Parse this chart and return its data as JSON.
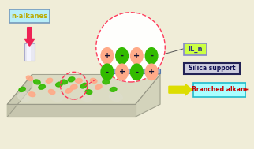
{
  "bg_color": "#f0edd8",
  "n_alkane_label": "n-alkanes",
  "n_alkane_box_facecolor": "#b8eef8",
  "n_alkane_box_edgecolor": "#7799bb",
  "n_alkane_text_color": "#bbaa00",
  "il_label": "IL_n",
  "il_box_facecolor": "#ccff44",
  "il_box_edgecolor": "#8888cc",
  "silica_label": "Silica support",
  "silica_box_facecolor": "#ccccdd",
  "silica_box_edgecolor": "#222255",
  "branched_label": "Branched alkane",
  "branched_box_facecolor": "#aaffff",
  "branched_box_edgecolor": "#22bbcc",
  "branched_text_color": "#cc0000",
  "arrow_down_color": "#ee2255",
  "arrow_right_color": "#dddd00",
  "circle_color": "#ff3355",
  "green_color": "#33bb00",
  "salmon_color": "#ffaa88",
  "silica_bar_color": "#88aacc",
  "platform_top_color": "#d8d8c0",
  "platform_left_color": "#c8c8b0",
  "platform_bottom_color": "#c0c0a8"
}
